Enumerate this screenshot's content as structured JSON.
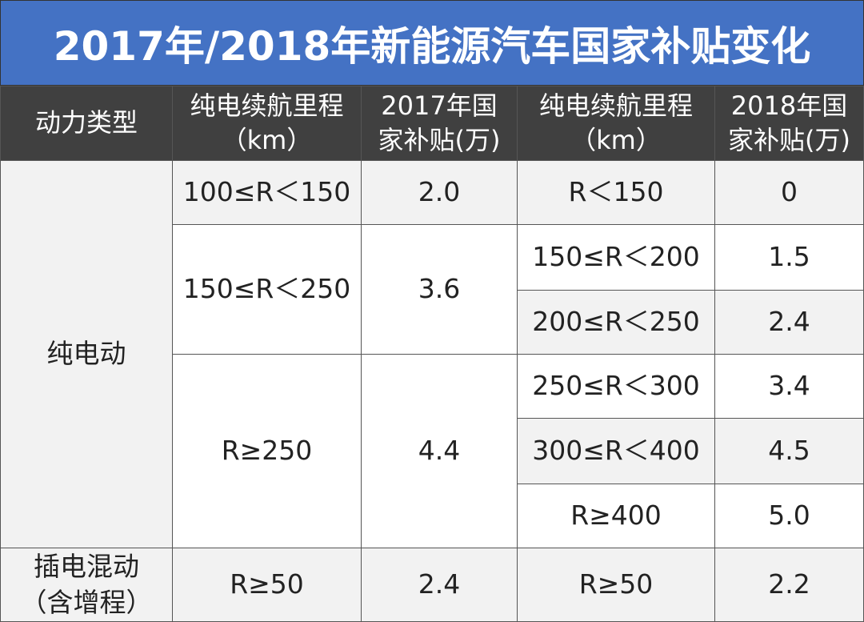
{
  "title": "2017年/2018年新能源汽车国家补贴变化",
  "colors": {
    "title_bg": "#4472c4",
    "header_bg": "#404040",
    "alt_row": "#f2f2f2"
  },
  "headers": {
    "type": "动力类型",
    "range2017": "纯电续航里程（km）",
    "subsidy2017": "2017年国家补贴(万)",
    "range2018": "纯电续航里程（km）",
    "subsidy2018": "2018年国家补贴(万)"
  },
  "groups": {
    "bev": "纯电动",
    "phev": "插电混动（含增程）"
  },
  "rows2017": [
    {
      "range": "100≤R＜150",
      "subsidy": "2.0"
    },
    {
      "range": "150≤R＜250",
      "subsidy": "3.6"
    },
    {
      "range": "R≥250",
      "subsidy": "4.4"
    },
    {
      "range": "R≥50",
      "subsidy": "2.4"
    }
  ],
  "rows2018": [
    {
      "range": "R＜150",
      "subsidy": "0"
    },
    {
      "range": "150≤R＜200",
      "subsidy": "1.5"
    },
    {
      "range": "200≤R＜250",
      "subsidy": "2.4"
    },
    {
      "range": "250≤R＜300",
      "subsidy": "3.4"
    },
    {
      "range": "300≤R＜400",
      "subsidy": "4.5"
    },
    {
      "range": "R≥400",
      "subsidy": "5.0"
    },
    {
      "range": "R≥50",
      "subsidy": "2.2"
    }
  ]
}
